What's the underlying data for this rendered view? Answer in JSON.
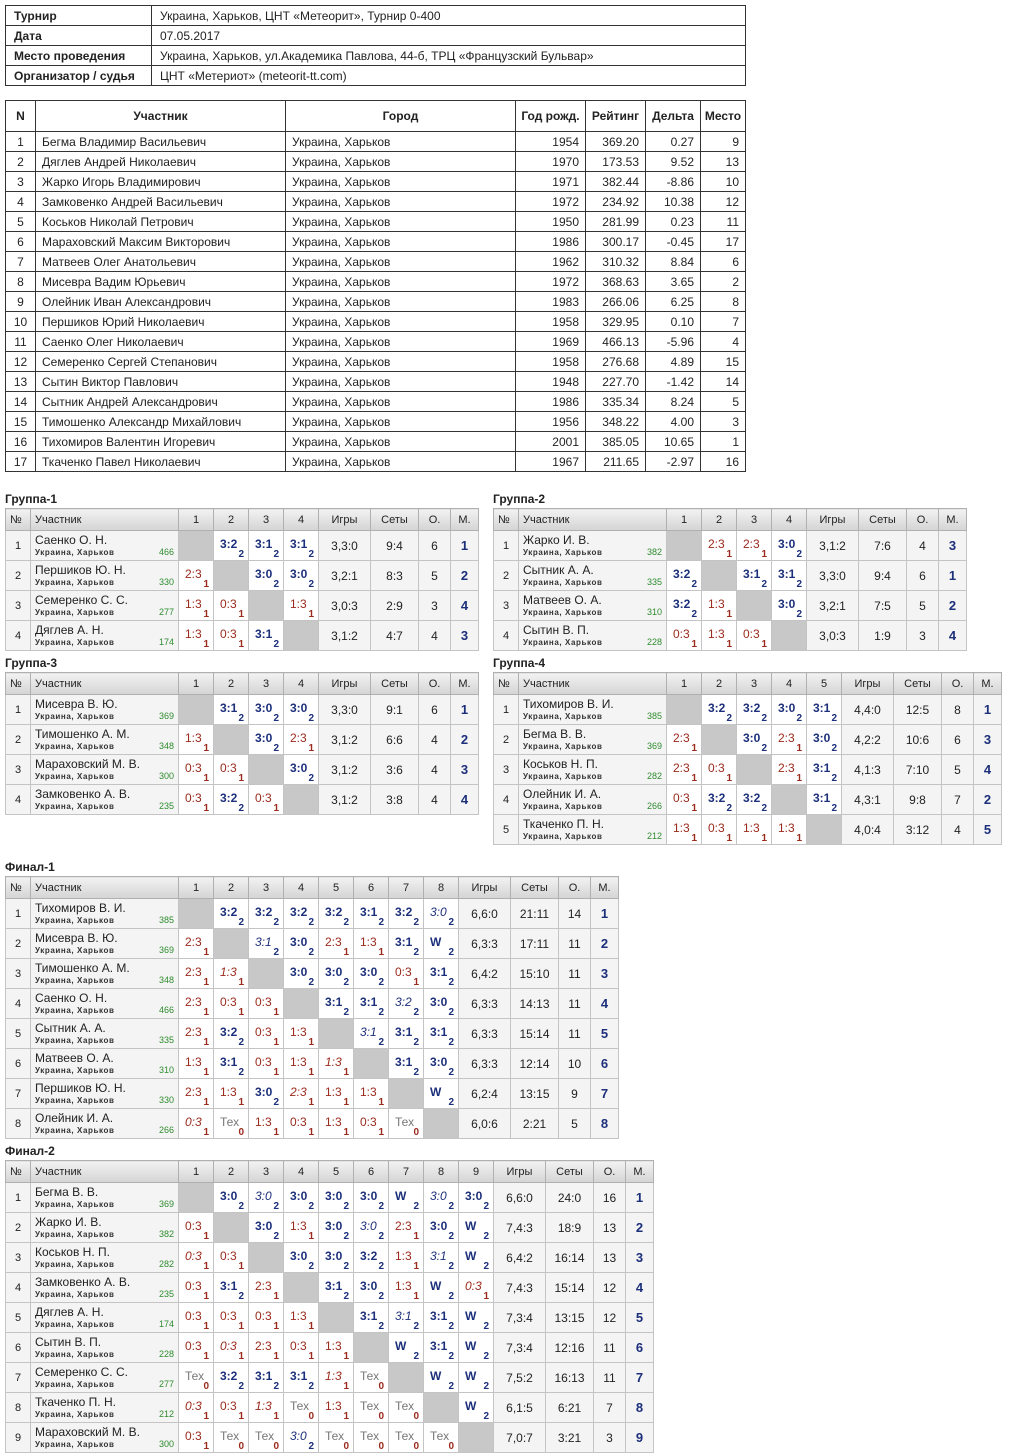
{
  "info": [
    {
      "key": "Турнир",
      "value": "Украина, Харьков, ЦНТ «Метеорит», Турнир 0-400"
    },
    {
      "key": "Дата",
      "value": "07.05.2017"
    },
    {
      "key": "Место проведения",
      "value": "Украина, Харьков, ул.Академика Павлова, 44-б, ТРЦ «Французский Бульвар»"
    },
    {
      "key": "Организатор / судья",
      "value": "ЦНТ «Метериот» (meteorit-tt.com)"
    }
  ],
  "participants": {
    "headers": [
      "N",
      "Участник",
      "Город",
      "Год рожд.",
      "Рейтинг",
      "Дельта",
      "Место"
    ],
    "rows": [
      [
        "1",
        "Бегма Владимир Васильевич",
        "Украина, Харьков",
        "1954",
        "369.20",
        "0.27",
        "9"
      ],
      [
        "2",
        "Дяглев Андрей Николаевич",
        "Украина, Харьков",
        "1970",
        "173.53",
        "9.52",
        "13"
      ],
      [
        "3",
        "Жарко Игорь Владимирович",
        "Украина, Харьков",
        "1971",
        "382.44",
        "-8.86",
        "10"
      ],
      [
        "4",
        "Замковенко Андрей Васильевич",
        "Украина, Харьков",
        "1972",
        "234.92",
        "10.38",
        "12"
      ],
      [
        "5",
        "Коськов Николай Петрович",
        "Украина, Харьков",
        "1950",
        "281.99",
        "0.23",
        "11"
      ],
      [
        "6",
        "Мараховский Максим Викторович",
        "Украина, Харьков",
        "1986",
        "300.17",
        "-0.45",
        "17"
      ],
      [
        "7",
        "Матвеев Олег Анатольевич",
        "Украина, Харьков",
        "1962",
        "310.32",
        "8.84",
        "6"
      ],
      [
        "8",
        "Мисевра Вадим Юрьевич",
        "Украина, Харьков",
        "1972",
        "368.63",
        "3.65",
        "2"
      ],
      [
        "9",
        "Олейник Иван Александрович",
        "Украина, Харьков",
        "1983",
        "266.06",
        "6.25",
        "8"
      ],
      [
        "10",
        "Першиков Юрий Николаевич",
        "Украина, Харьков",
        "1958",
        "329.95",
        "0.10",
        "7"
      ],
      [
        "11",
        "Саенко Олег Николаевич",
        "Украина, Харьков",
        "1969",
        "466.13",
        "-5.96",
        "4"
      ],
      [
        "12",
        "Семеренко Сергей Степанович",
        "Украина, Харьков",
        "1958",
        "276.68",
        "4.89",
        "15"
      ],
      [
        "13",
        "Сытин Виктор Павлович",
        "Украина, Харьков",
        "1948",
        "227.70",
        "-1.42",
        "14"
      ],
      [
        "14",
        "Сытник Андрей Александрович",
        "Украина, Харьков",
        "1986",
        "335.34",
        "8.24",
        "5"
      ],
      [
        "15",
        "Тимошенко Александр Михайлович",
        "Украина, Харьков",
        "1956",
        "348.22",
        "4.00",
        "3"
      ],
      [
        "16",
        "Тихомиров Валентин Игоревич",
        "Украина, Харьков",
        "2001",
        "385.05",
        "10.65",
        "1"
      ],
      [
        "17",
        "Ткаченко Павел Николаевич",
        "Украина, Харьков",
        "1967",
        "211.65",
        "-2.97",
        "16"
      ]
    ]
  },
  "group_headers": {
    "num": "№",
    "name": "Участник",
    "games": "Игры",
    "sets": "Сеты",
    "points": "О.",
    "place": "М."
  },
  "groups": [
    {
      "title": "Группа-1",
      "players": [
        {
          "name": "Саенко О. Н.",
          "city": "Украина, Харьков",
          "rating": "466",
          "results": [
            "",
            "3:2|2",
            "3:1|2",
            "3:1|2"
          ],
          "games": "3,3:0",
          "sets": "9:4",
          "points": "6",
          "place": "1"
        },
        {
          "name": "Першиков Ю. Н.",
          "city": "Украина, Харьков",
          "rating": "330",
          "results": [
            "2:3|1",
            "",
            "3:0|2",
            "3:0|2"
          ],
          "games": "3,2:1",
          "sets": "8:3",
          "points": "5",
          "place": "2"
        },
        {
          "name": "Семеренко С. С.",
          "city": "Украина, Харьков",
          "rating": "277",
          "results": [
            "1:3|1",
            "0:3|1",
            "",
            "1:3|1"
          ],
          "games": "3,0:3",
          "sets": "2:9",
          "points": "3",
          "place": "4"
        },
        {
          "name": "Дяглев А. Н.",
          "city": "Украина, Харьков",
          "rating": "174",
          "results": [
            "1:3|1",
            "0:3|1",
            "3:1|2",
            ""
          ],
          "games": "3,1:2",
          "sets": "4:7",
          "points": "4",
          "place": "3"
        }
      ]
    },
    {
      "title": "Группа-2",
      "players": [
        {
          "name": "Жарко И. В.",
          "city": "Украина, Харьков",
          "rating": "382",
          "results": [
            "",
            "2:3|1",
            "2:3|1",
            "3:0|2"
          ],
          "games": "3,1:2",
          "sets": "7:6",
          "points": "4",
          "place": "3"
        },
        {
          "name": "Сытник А. А.",
          "city": "Украина, Харьков",
          "rating": "335",
          "results": [
            "3:2|2",
            "",
            "3:1|2",
            "3:1|2"
          ],
          "games": "3,3:0",
          "sets": "9:4",
          "points": "6",
          "place": "1"
        },
        {
          "name": "Матвеев О. А.",
          "city": "Украина, Харьков",
          "rating": "310",
          "results": [
            "3:2|2",
            "1:3|1",
            "",
            "3:0|2"
          ],
          "games": "3,2:1",
          "sets": "7:5",
          "points": "5",
          "place": "2"
        },
        {
          "name": "Сытин В. П.",
          "city": "Украина, Харьков",
          "rating": "228",
          "results": [
            "0:3|1",
            "1:3|1",
            "0:3|1",
            ""
          ],
          "games": "3,0:3",
          "sets": "1:9",
          "points": "3",
          "place": "4"
        }
      ]
    },
    {
      "title": "Группа-3",
      "players": [
        {
          "name": "Мисевра В. Ю.",
          "city": "Украина, Харьков",
          "rating": "369",
          "results": [
            "",
            "3:1|2",
            "3:0|2",
            "3:0|2"
          ],
          "games": "3,3:0",
          "sets": "9:1",
          "points": "6",
          "place": "1"
        },
        {
          "name": "Тимошенко А. М.",
          "city": "Украина, Харьков",
          "rating": "348",
          "results": [
            "1:3|1",
            "",
            "3:0|2",
            "2:3|1"
          ],
          "games": "3,1:2",
          "sets": "6:6",
          "points": "4",
          "place": "2"
        },
        {
          "name": "Мараховский М. В.",
          "city": "Украина, Харьков",
          "rating": "300",
          "results": [
            "0:3|1",
            "0:3|1",
            "",
            "3:0|2"
          ],
          "games": "3,1:2",
          "sets": "3:6",
          "points": "4",
          "place": "3"
        },
        {
          "name": "Замковенко А. В.",
          "city": "Украина, Харьков",
          "rating": "235",
          "results": [
            "0:3|1",
            "3:2|2",
            "0:3|1",
            ""
          ],
          "games": "3,1:2",
          "sets": "3:8",
          "points": "4",
          "place": "4"
        }
      ]
    },
    {
      "title": "Группа-4",
      "players": [
        {
          "name": "Тихомиров В. И.",
          "city": "Украина, Харьков",
          "rating": "385",
          "results": [
            "",
            "3:2|2",
            "3:2|2",
            "3:0|2",
            "3:1|2"
          ],
          "games": "4,4:0",
          "sets": "12:5",
          "points": "8",
          "place": "1"
        },
        {
          "name": "Бегма В. В.",
          "city": "Украина, Харьков",
          "rating": "369",
          "results": [
            "2:3|1",
            "",
            "3:0|2",
            "2:3|1",
            "3:0|2"
          ],
          "games": "4,2:2",
          "sets": "10:6",
          "points": "6",
          "place": "3"
        },
        {
          "name": "Коськов Н. П.",
          "city": "Украина, Харьков",
          "rating": "282",
          "results": [
            "2:3|1",
            "0:3|1",
            "",
            "2:3|1",
            "3:1|2"
          ],
          "games": "4,1:3",
          "sets": "7:10",
          "points": "5",
          "place": "4"
        },
        {
          "name": "Олейник И. А.",
          "city": "Украина, Харьков",
          "rating": "266",
          "results": [
            "0:3|1",
            "3:2|2",
            "3:2|2",
            "",
            "3:1|2"
          ],
          "games": "4,3:1",
          "sets": "9:8",
          "points": "7",
          "place": "2"
        },
        {
          "name": "Ткаченко П. Н.",
          "city": "Украина, Харьков",
          "rating": "212",
          "results": [
            "1:3|1",
            "0:3|1",
            "1:3|1",
            "1:3|1",
            ""
          ],
          "games": "4,0:4",
          "sets": "3:12",
          "points": "4",
          "place": "5"
        }
      ]
    },
    {
      "title": "Финал-1",
      "players": [
        {
          "name": "Тихомиров В. И.",
          "city": "Украина, Харьков",
          "rating": "385",
          "results": [
            "",
            "3:2|2",
            "3:2|2",
            "3:2|2",
            "3:2|2",
            "3:1|2",
            "3:2|2",
            "3:0|2|i"
          ],
          "games": "6,6:0",
          "sets": "21:11",
          "points": "14",
          "place": "1"
        },
        {
          "name": "Мисевра В. Ю.",
          "city": "Украина, Харьков",
          "rating": "369",
          "results": [
            "2:3|1",
            "",
            "3:1|2|i",
            "3:0|2",
            "2:3|1",
            "1:3|1",
            "3:1|2",
            "W|2"
          ],
          "games": "6,3:3",
          "sets": "17:11",
          "points": "11",
          "place": "2"
        },
        {
          "name": "Тимошенко А. М.",
          "city": "Украина, Харьков",
          "rating": "348",
          "results": [
            "2:3|1",
            "1:3|1|i",
            "",
            "3:0|2",
            "3:0|2",
            "3:0|2",
            "0:3|1",
            "3:1|2"
          ],
          "games": "6,4:2",
          "sets": "15:10",
          "points": "11",
          "place": "3"
        },
        {
          "name": "Саенко О. Н.",
          "city": "Украина, Харьков",
          "rating": "466",
          "results": [
            "2:3|1",
            "0:3|1",
            "0:3|1",
            "",
            "3:1|2",
            "3:1|2",
            "3:2|2|i",
            "3:0|2"
          ],
          "games": "6,3:3",
          "sets": "14:13",
          "points": "11",
          "place": "4"
        },
        {
          "name": "Сытник А. А.",
          "city": "Украина, Харьков",
          "rating": "335",
          "results": [
            "2:3|1",
            "3:2|2",
            "0:3|1",
            "1:3|1",
            "",
            "3:1|2|i",
            "3:1|2",
            "3:1|2"
          ],
          "games": "6,3:3",
          "sets": "15:14",
          "points": "11",
          "place": "5"
        },
        {
          "name": "Матвеев О. А.",
          "city": "Украина, Харьков",
          "rating": "310",
          "results": [
            "1:3|1",
            "3:1|2",
            "0:3|1",
            "1:3|1",
            "1:3|1|i",
            "",
            "3:1|2",
            "3:0|2"
          ],
          "games": "6,3:3",
          "sets": "12:14",
          "points": "10",
          "place": "6"
        },
        {
          "name": "Першиков Ю. Н.",
          "city": "Украина, Харьков",
          "rating": "330",
          "results": [
            "2:3|1",
            "1:3|1",
            "3:0|2",
            "2:3|1|i",
            "1:3|1",
            "1:3|1",
            "",
            "W|2"
          ],
          "games": "6,2:4",
          "sets": "13:15",
          "points": "9",
          "place": "7"
        },
        {
          "name": "Олейник И. А.",
          "city": "Украина, Харьков",
          "rating": "266",
          "results": [
            "0:3|1|i",
            "Тех|0",
            "1:3|1",
            "0:3|1",
            "1:3|1",
            "0:3|1",
            "Тех|0",
            ""
          ],
          "games": "6,0:6",
          "sets": "2:21",
          "points": "5",
          "place": "8"
        }
      ]
    },
    {
      "title": "Финал-2",
      "players": [
        {
          "name": "Бегма В. В.",
          "city": "Украина, Харьков",
          "rating": "369",
          "results": [
            "",
            "3:0|2",
            "3:0|2|i",
            "3:0|2",
            "3:0|2",
            "3:0|2",
            "W|2",
            "3:0|2|i",
            "3:0|2"
          ],
          "games": "6,6:0",
          "sets": "24:0",
          "points": "16",
          "place": "1"
        },
        {
          "name": "Жарко И. В.",
          "city": "Украина, Харьков",
          "rating": "382",
          "results": [
            "0:3|1",
            "",
            "3:0|2",
            "1:3|1",
            "3:0|2",
            "3:0|2|i",
            "2:3|1",
            "3:0|2",
            "W|2"
          ],
          "games": "7,4:3",
          "sets": "18:9",
          "points": "13",
          "place": "2"
        },
        {
          "name": "Коськов Н. П.",
          "city": "Украина, Харьков",
          "rating": "282",
          "results": [
            "0:3|1|i",
            "0:3|1",
            "",
            "3:0|2",
            "3:0|2",
            "3:2|2",
            "1:3|1",
            "3:1|2|i",
            "W|2"
          ],
          "games": "6,4:2",
          "sets": "16:14",
          "points": "13",
          "place": "3"
        },
        {
          "name": "Замковенко А. В.",
          "city": "Украина, Харьков",
          "rating": "235",
          "results": [
            "0:3|1",
            "3:1|2",
            "2:3|1",
            "",
            "3:1|2",
            "3:0|2",
            "1:3|1",
            "W|2",
            "0:3|1|i"
          ],
          "games": "7,4:3",
          "sets": "15:14",
          "points": "12",
          "place": "4"
        },
        {
          "name": "Дяглев А. Н.",
          "city": "Украина, Харьков",
          "rating": "174",
          "results": [
            "0:3|1",
            "0:3|1",
            "0:3|1",
            "1:3|1",
            "",
            "3:1|2",
            "3:1|2|i",
            "3:1|2",
            "W|2"
          ],
          "games": "7,3:4",
          "sets": "13:15",
          "points": "12",
          "place": "5"
        },
        {
          "name": "Сытин В. П.",
          "city": "Украина, Харьков",
          "rating": "228",
          "results": [
            "0:3|1",
            "0:3|1|i",
            "2:3|1",
            "0:3|1",
            "1:3|1",
            "",
            "W|2",
            "3:1|2",
            "W|2"
          ],
          "games": "7,3:4",
          "sets": "12:16",
          "points": "11",
          "place": "6"
        },
        {
          "name": "Семеренко С. С.",
          "city": "Украина, Харьков",
          "rating": "277",
          "results": [
            "Тех|0",
            "3:2|2",
            "3:1|2",
            "3:1|2",
            "1:3|1|i",
            "Тех|0",
            "",
            "W|2",
            "W|2"
          ],
          "games": "7,5:2",
          "sets": "16:13",
          "points": "11",
          "place": "7"
        },
        {
          "name": "Ткаченко П. Н.",
          "city": "Украина, Харьков",
          "rating": "212",
          "results": [
            "0:3|1|i",
            "0:3|1",
            "1:3|1|i",
            "Тех|0",
            "1:3|1",
            "Тех|0",
            "Тех|0",
            "",
            "W|2"
          ],
          "games": "6,1:5",
          "sets": "6:21",
          "points": "7",
          "place": "8"
        },
        {
          "name": "Мараховский М. В.",
          "city": "Украина, Харьков",
          "rating": "300",
          "results": [
            "0:3|1",
            "Тех|0",
            "Тех|0",
            "3:0|2|i",
            "Тех|0",
            "Тех|0",
            "Тех|0",
            "Тех|0",
            ""
          ],
          "games": "7,0:7",
          "sets": "3:21",
          "points": "3",
          "place": "9"
        }
      ]
    }
  ]
}
